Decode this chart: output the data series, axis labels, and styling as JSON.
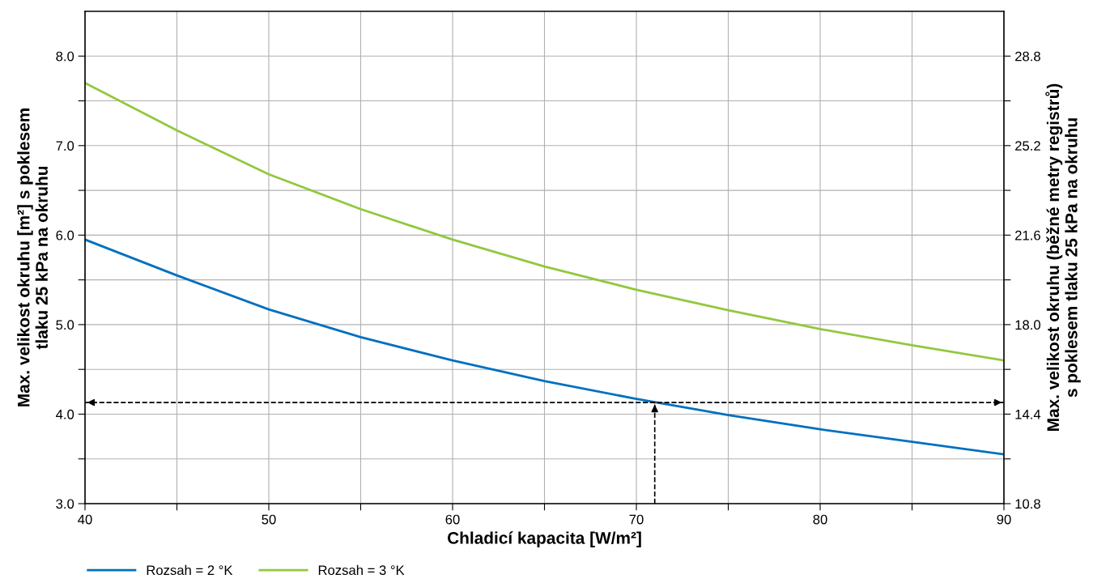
{
  "chart_data": {
    "type": "line",
    "xlabel": "Chladicí kapacita [W/m²]",
    "ylabel": "Max. velikost okruhu [m²] s poklesem\ntlaku 25 kPa na okruhu",
    "y2label": "Max. velikost okruhu (běžné metry registrů)\ns poklesem tlaku 25 kPa na okruhu",
    "x": [
      40,
      45,
      50,
      55,
      60,
      65,
      70,
      75,
      80,
      85,
      90
    ],
    "series": [
      {
        "name": "Rozsah = 2 °K",
        "color": "#0070c0",
        "values": [
          5.95,
          5.55,
          5.17,
          4.86,
          4.6,
          4.37,
          4.17,
          3.99,
          3.83,
          3.69,
          3.55
        ]
      },
      {
        "name": "Rozsah = 3 °K",
        "color": "#92c83e",
        "values": [
          7.7,
          7.17,
          6.68,
          6.29,
          5.95,
          5.65,
          5.39,
          5.16,
          4.95,
          4.77,
          4.6
        ]
      }
    ],
    "xlim": [
      40,
      90
    ],
    "xticks": [
      40,
      {
        "value": 45,
        "label": null
      },
      50,
      {
        "value": 55,
        "label": null
      },
      60,
      {
        "value": 65,
        "label": null
      },
      70,
      {
        "value": 75,
        "label": null
      },
      80,
      {
        "value": 85,
        "label": null
      },
      90
    ],
    "ylim": [
      3.0,
      8.5
    ],
    "yticks": [
      {
        "value": 3,
        "label": "3.0"
      },
      {
        "value": 3.5,
        "label": null
      },
      {
        "value": 4,
        "label": "4.0"
      },
      {
        "value": 4.5,
        "label": null
      },
      {
        "value": 5,
        "label": "5.0"
      },
      {
        "value": 5.5,
        "label": null
      },
      {
        "value": 6,
        "label": "6.0"
      },
      {
        "value": 6.5,
        "label": null
      },
      {
        "value": 7,
        "label": "7.0"
      },
      {
        "value": 7.5,
        "label": null
      },
      {
        "value": 8,
        "label": "8.0"
      }
    ],
    "y2lim": [
      10.8,
      30.6
    ],
    "y2ticks": [
      10.8,
      {
        "value": 12.6,
        "label": null
      },
      14.4,
      {
        "value": 16.2,
        "label": null
      },
      {
        "value": 18,
        "label": "18.0"
      },
      {
        "value": 19.8,
        "label": null
      },
      21.6,
      {
        "value": 23.4,
        "label": null
      },
      25.2,
      {
        "value": 27.0,
        "label": null
      },
      28.8
    ],
    "ref_lines": [
      {
        "axis": "y",
        "value": 4.13,
        "line_style": "dashed",
        "color": "#000000"
      },
      {
        "axis": "x",
        "value": 71,
        "line_style": "dashed",
        "color": "#000000"
      }
    ],
    "grid": true,
    "legend": "bottom left",
    "marker": "none",
    "line_style": "solid"
  }
}
